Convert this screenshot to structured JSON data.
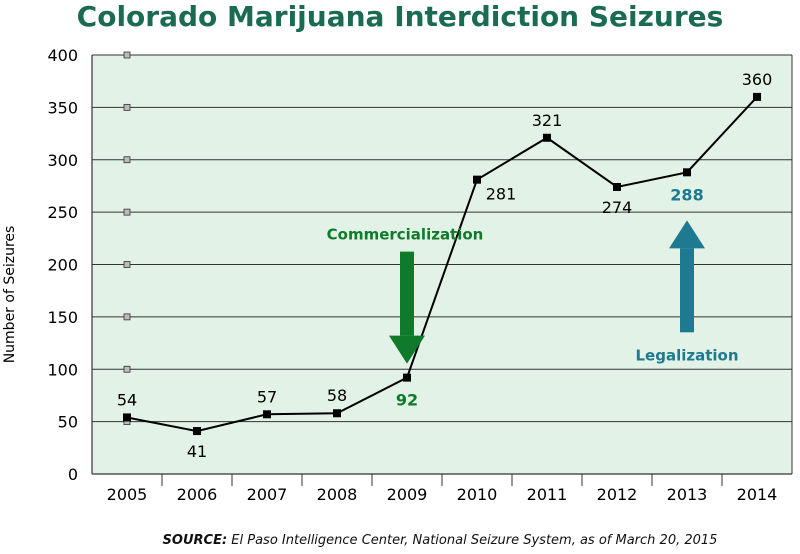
{
  "chart_data": {
    "type": "line",
    "title": "Colorado Marijuana Interdiction Seizures",
    "xlabel": "",
    "ylabel": "Number of Seizures",
    "categories": [
      "2005",
      "2006",
      "2007",
      "2008",
      "2009",
      "2010",
      "2011",
      "2012",
      "2013",
      "2014"
    ],
    "values": [
      54,
      41,
      57,
      58,
      92,
      281,
      321,
      274,
      288,
      360
    ],
    "value_labels": [
      "54",
      "41",
      "57",
      "58",
      "92",
      "281",
      "321",
      "274",
      "288",
      "360"
    ],
    "ylim": [
      0,
      400
    ],
    "yticks": [
      0,
      50,
      100,
      150,
      200,
      250,
      300,
      350,
      400
    ],
    "ytick_labels": [
      "0",
      "50",
      "100",
      "150",
      "200",
      "250",
      "300",
      "350",
      "400"
    ],
    "grid": true,
    "annotations": [
      {
        "text": "Commercialization",
        "year": "2009",
        "direction": "down",
        "color": "#0e7a2a"
      },
      {
        "text": "Legalization",
        "year": "2013",
        "direction": "up",
        "color": "#1e7a91"
      }
    ]
  },
  "source": {
    "label": "SOURCE:",
    "text": "El Paso Intelligence Center, National Seizure System, as of March 20, 2015"
  },
  "colors": {
    "title": "#1b6b52",
    "plot_bg": "#e3f2e6",
    "commercialization": "#0e7a2a",
    "legalization": "#1e7a91",
    "line": "#000000"
  }
}
